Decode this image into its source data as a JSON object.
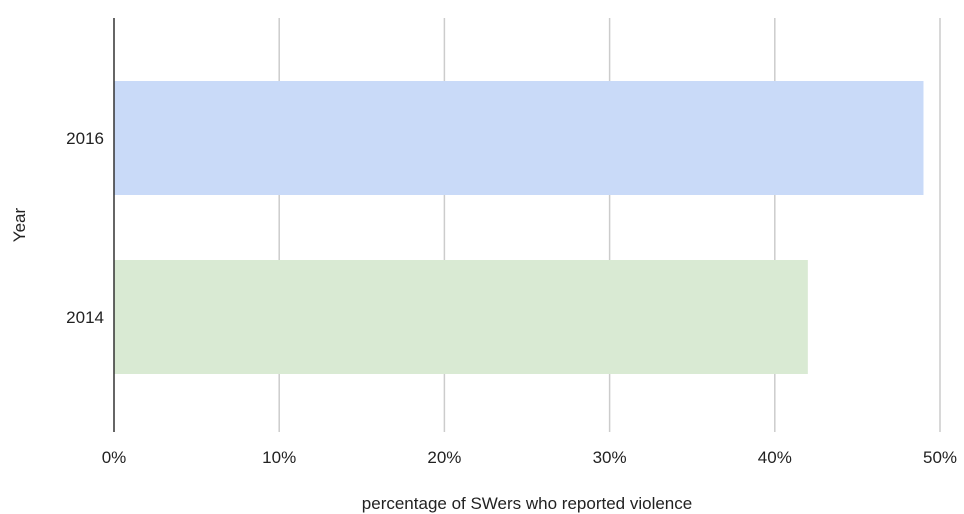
{
  "chart_data": {
    "type": "bar",
    "orientation": "horizontal",
    "categories": [
      "2016",
      "2014"
    ],
    "values": [
      49,
      42
    ],
    "bar_colors": [
      "#c9daf8",
      "#d9ead3"
    ],
    "xlabel": "percentage of SWers who reported violence",
    "ylabel": "Year",
    "xlim": [
      0,
      50
    ],
    "x_ticks": [
      0,
      10,
      20,
      30,
      40,
      50
    ],
    "x_tick_labels": [
      "0%",
      "10%",
      "20%",
      "30%",
      "40%",
      "50%"
    ],
    "grid": "vertical",
    "legend": "none"
  }
}
